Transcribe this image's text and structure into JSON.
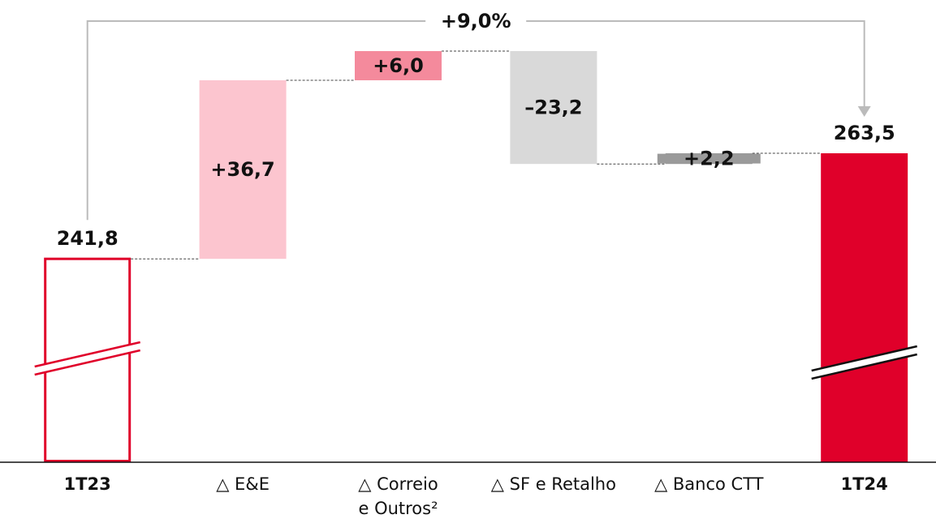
{
  "chart_data": {
    "type": "waterfall",
    "categories": [
      "1T23",
      "△ E&E",
      "△ Correio\ne Outros²",
      "△ SF e Retalho",
      "△ Banco CTT",
      "1T24"
    ],
    "values": [
      241.8,
      36.7,
      6.0,
      -23.2,
      2.2,
      263.5
    ],
    "value_labels": [
      "241,8",
      "+36,7",
      "+6,0",
      "–23,2",
      "+2,2",
      "263,5"
    ],
    "totals": [
      true,
      false,
      false,
      false,
      false,
      true
    ],
    "colors": [
      "#e0002a",
      "#fcc5cf",
      "#f48a9c",
      "#d9d9d9",
      "#9a9a9a",
      "#e0002a"
    ],
    "ylim": [
      200,
      295
    ],
    "annotation": "+9,0%"
  }
}
